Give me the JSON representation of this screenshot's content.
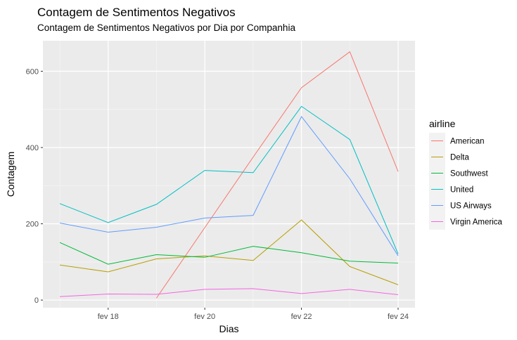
{
  "chart_data": {
    "type": "line",
    "title": "Contagem de Sentimentos Negativos",
    "subtitle": "Contagem de Sentimentos Negativos por Dia por Companhia",
    "xlabel": "Dias",
    "ylabel": "Contagem",
    "x": [
      "2015-02-17",
      "2015-02-18",
      "2015-02-19",
      "2015-02-20",
      "2015-02-21",
      "2015-02-22",
      "2015-02-23",
      "2015-02-24"
    ],
    "x_ticks": [
      {
        "date": "2015-02-18",
        "label": "fev 18"
      },
      {
        "date": "2015-02-20",
        "label": "fev 20"
      },
      {
        "date": "2015-02-22",
        "label": "fev 22"
      },
      {
        "date": "2015-02-24",
        "label": "fev 24"
      }
    ],
    "y_ticks": [
      0,
      200,
      400,
      600
    ],
    "ylim": [
      -20,
      680
    ],
    "grid": true,
    "legend_title": "airline",
    "legend_position": "right",
    "series": [
      {
        "name": "American",
        "color": "#F8766D",
        "points": [
          [
            "2015-02-19",
            5
          ],
          [
            "2015-02-20",
            190
          ],
          [
            "2015-02-21",
            375
          ],
          [
            "2015-02-22",
            557
          ],
          [
            "2015-02-23",
            651
          ],
          [
            "2015-02-24",
            337
          ]
        ]
      },
      {
        "name": "Delta",
        "color": "#B79F00",
        "points": [
          [
            "2015-02-17",
            92
          ],
          [
            "2015-02-18",
            74
          ],
          [
            "2015-02-19",
            108
          ],
          [
            "2015-02-20",
            116
          ],
          [
            "2015-02-21",
            104
          ],
          [
            "2015-02-22",
            210
          ],
          [
            "2015-02-23",
            88
          ],
          [
            "2015-02-24",
            40
          ]
        ]
      },
      {
        "name": "Southwest",
        "color": "#00BA38",
        "points": [
          [
            "2015-02-17",
            151
          ],
          [
            "2015-02-18",
            94
          ],
          [
            "2015-02-19",
            119
          ],
          [
            "2015-02-20",
            112
          ],
          [
            "2015-02-21",
            141
          ],
          [
            "2015-02-22",
            124
          ],
          [
            "2015-02-23",
            102
          ],
          [
            "2015-02-24",
            97
          ]
        ]
      },
      {
        "name": "United",
        "color": "#00BFC4",
        "points": [
          [
            "2015-02-17",
            253
          ],
          [
            "2015-02-18",
            203
          ],
          [
            "2015-02-19",
            251
          ],
          [
            "2015-02-20",
            340
          ],
          [
            "2015-02-21",
            334
          ],
          [
            "2015-02-22",
            508
          ],
          [
            "2015-02-23",
            421
          ],
          [
            "2015-02-24",
            121
          ]
        ]
      },
      {
        "name": "US Airways",
        "color": "#619CFF",
        "points": [
          [
            "2015-02-17",
            202
          ],
          [
            "2015-02-18",
            178
          ],
          [
            "2015-02-19",
            191
          ],
          [
            "2015-02-20",
            215
          ],
          [
            "2015-02-21",
            222
          ],
          [
            "2015-02-22",
            481
          ],
          [
            "2015-02-23",
            318
          ],
          [
            "2015-02-24",
            116
          ]
        ]
      },
      {
        "name": "Virgin America",
        "color": "#F564E3",
        "points": [
          [
            "2015-02-17",
            9
          ],
          [
            "2015-02-18",
            16
          ],
          [
            "2015-02-19",
            15
          ],
          [
            "2015-02-20",
            28
          ],
          [
            "2015-02-21",
            30
          ],
          [
            "2015-02-22",
            17
          ],
          [
            "2015-02-23",
            28
          ],
          [
            "2015-02-24",
            14
          ]
        ]
      }
    ]
  }
}
